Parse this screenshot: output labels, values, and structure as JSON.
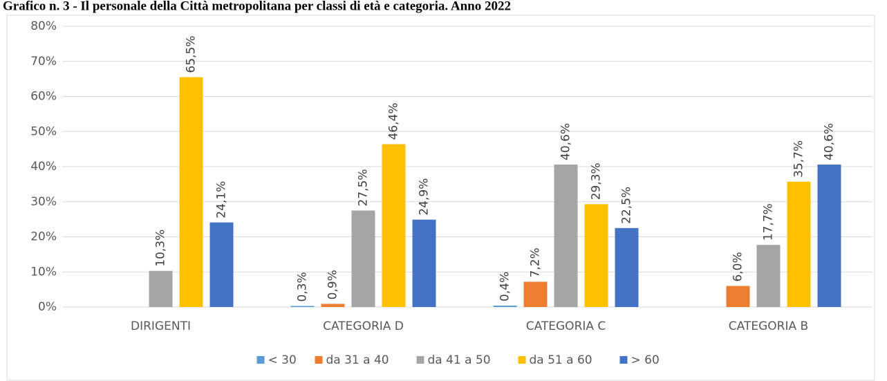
{
  "chart_data": {
    "type": "bar",
    "title": "Grafico n. 3 - Il personale della Città metropolitana per classi di età e categoria. Anno 2022",
    "categories": [
      "DIRIGENTI",
      "CATEGORIA D",
      "CATEGORIA C",
      "CATEGORIA B"
    ],
    "series": [
      {
        "name": "< 30",
        "color": "#5b9bd5",
        "values": [
          null,
          0.3,
          0.4,
          null
        ],
        "value_labels": [
          null,
          "0,3%",
          "0,4%",
          null
        ]
      },
      {
        "name": "da 31 a 40",
        "color": "#ed7d31",
        "values": [
          null,
          0.9,
          7.2,
          6.0
        ],
        "value_labels": [
          null,
          "0,9%",
          "7,2%",
          "6,0%"
        ]
      },
      {
        "name": "da 41 a 50",
        "color": "#a5a5a5",
        "values": [
          10.3,
          27.5,
          40.6,
          17.7
        ],
        "value_labels": [
          "10,3%",
          "27,5%",
          "40,6%",
          "17,7%"
        ]
      },
      {
        "name": "da 51 a 60",
        "color": "#ffc000",
        "values": [
          65.5,
          46.4,
          29.3,
          35.7
        ],
        "value_labels": [
          "65,5%",
          "46,4%",
          "29,3%",
          "35,7%"
        ]
      },
      {
        "name": "> 60",
        "color": "#4472c4",
        "values": [
          24.1,
          24.9,
          22.5,
          40.6
        ],
        "value_labels": [
          "24,1%",
          "24,9%",
          "22,5%",
          "40,6%"
        ]
      }
    ],
    "ylim": [
      0,
      80
    ],
    "yticks": [
      {
        "value": 0,
        "label": "0%"
      },
      {
        "value": 10,
        "label": "10%"
      },
      {
        "value": 20,
        "label": "20%"
      },
      {
        "value": 30,
        "label": "30%"
      },
      {
        "value": 40,
        "label": "40%"
      },
      {
        "value": 50,
        "label": "50%"
      },
      {
        "value": 60,
        "label": "60%"
      },
      {
        "value": 70,
        "label": "70%"
      },
      {
        "value": 80,
        "label": "80%"
      }
    ],
    "grid": true,
    "legend": "bottom"
  }
}
